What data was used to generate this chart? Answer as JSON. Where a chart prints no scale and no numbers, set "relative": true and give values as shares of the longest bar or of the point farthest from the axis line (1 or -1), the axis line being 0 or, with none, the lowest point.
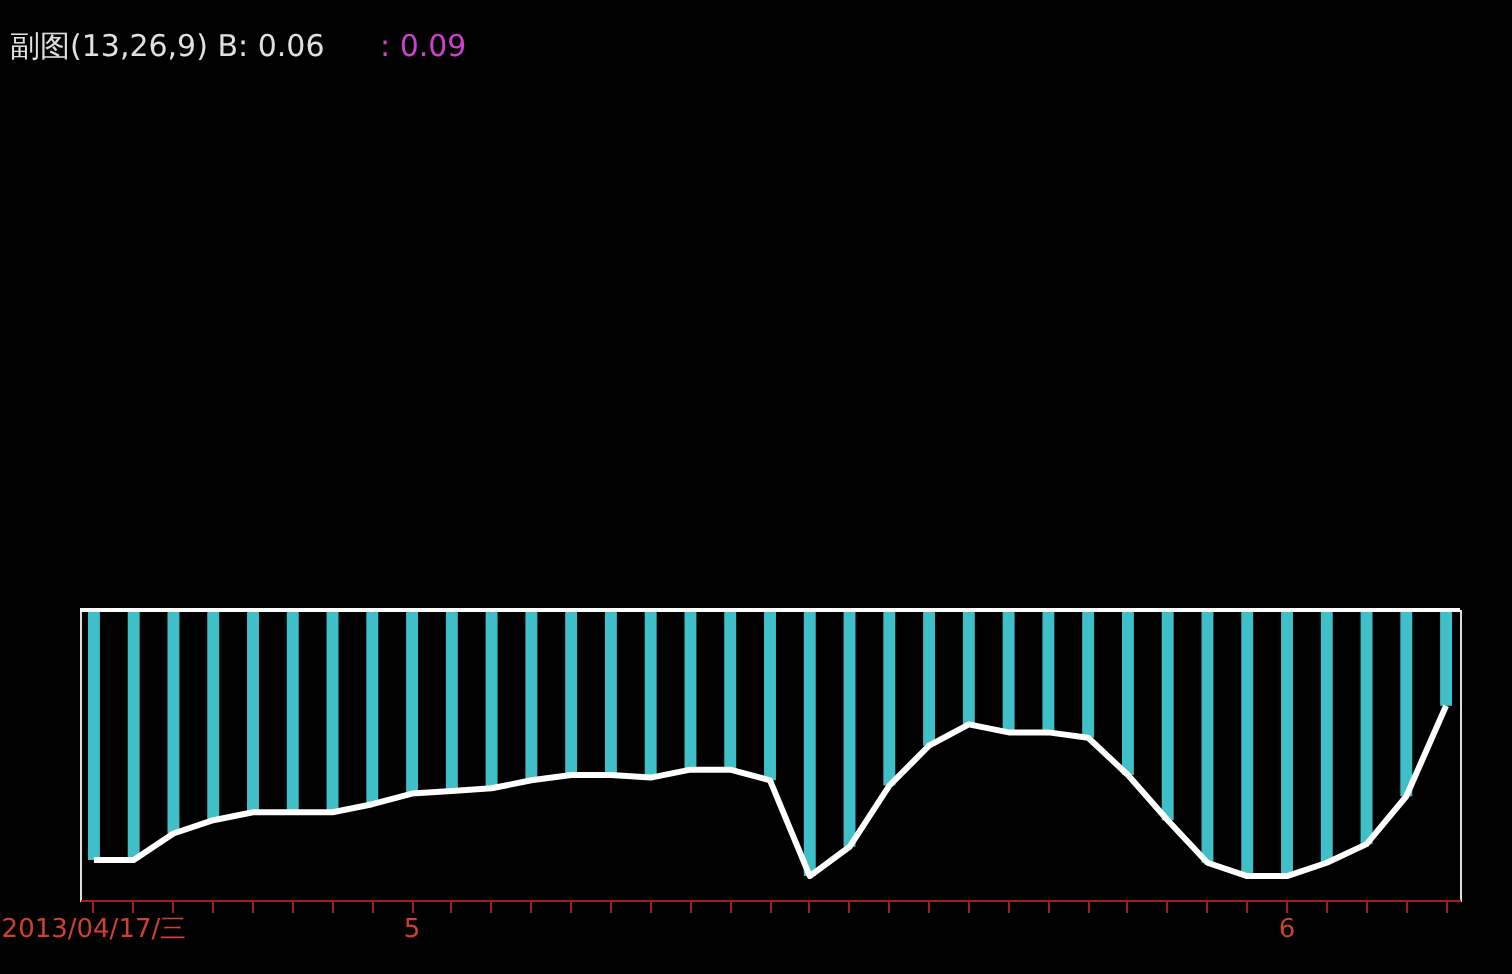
{
  "chart_data": {
    "type": "bar",
    "relative": true,
    "categories": [
      "2013/04/17/三",
      null,
      null,
      null,
      null,
      null,
      null,
      null,
      "5",
      null,
      null,
      null,
      null,
      null,
      null,
      null,
      null,
      null,
      null,
      null,
      null,
      null,
      null,
      null,
      null,
      null,
      null,
      null,
      null,
      null,
      "6",
      null,
      null,
      null,
      null
    ],
    "series": [
      {
        "color": "#3fbfc8",
        "values": [
          -0.94,
          -0.94,
          -0.84,
          -0.79,
          -0.76,
          -0.76,
          -0.76,
          -0.73,
          -0.69,
          -0.68,
          -0.67,
          -0.64,
          -0.62,
          -0.62,
          -0.63,
          -0.6,
          -0.6,
          -0.64,
          -1,
          -0.89,
          -0.66,
          -0.51,
          -0.43,
          -0.46,
          -0.46,
          -0.48,
          -0.62,
          -0.79,
          -0.95,
          -1,
          -1,
          -0.95,
          -0.88,
          -0.7,
          -0.36
        ]
      },
      {
        "type": "line",
        "color": "#ffffff",
        "values": [
          -0.94,
          -0.94,
          -0.84,
          -0.79,
          -0.76,
          -0.76,
          -0.76,
          -0.73,
          -0.69,
          -0.68,
          -0.67,
          -0.64,
          -0.62,
          -0.62,
          -0.63,
          -0.6,
          -0.6,
          -0.64,
          -1,
          -0.89,
          -0.66,
          -0.51,
          -0.43,
          -0.46,
          -0.46,
          -0.48,
          -0.62,
          -0.79,
          -0.95,
          -1,
          -1,
          -0.95,
          -0.88,
          -0.7,
          -0.36
        ]
      }
    ],
    "annotations": [
      "副图(13,26,9) B: 0.06",
      ": 0.09"
    ],
    "grid": false
  }
}
